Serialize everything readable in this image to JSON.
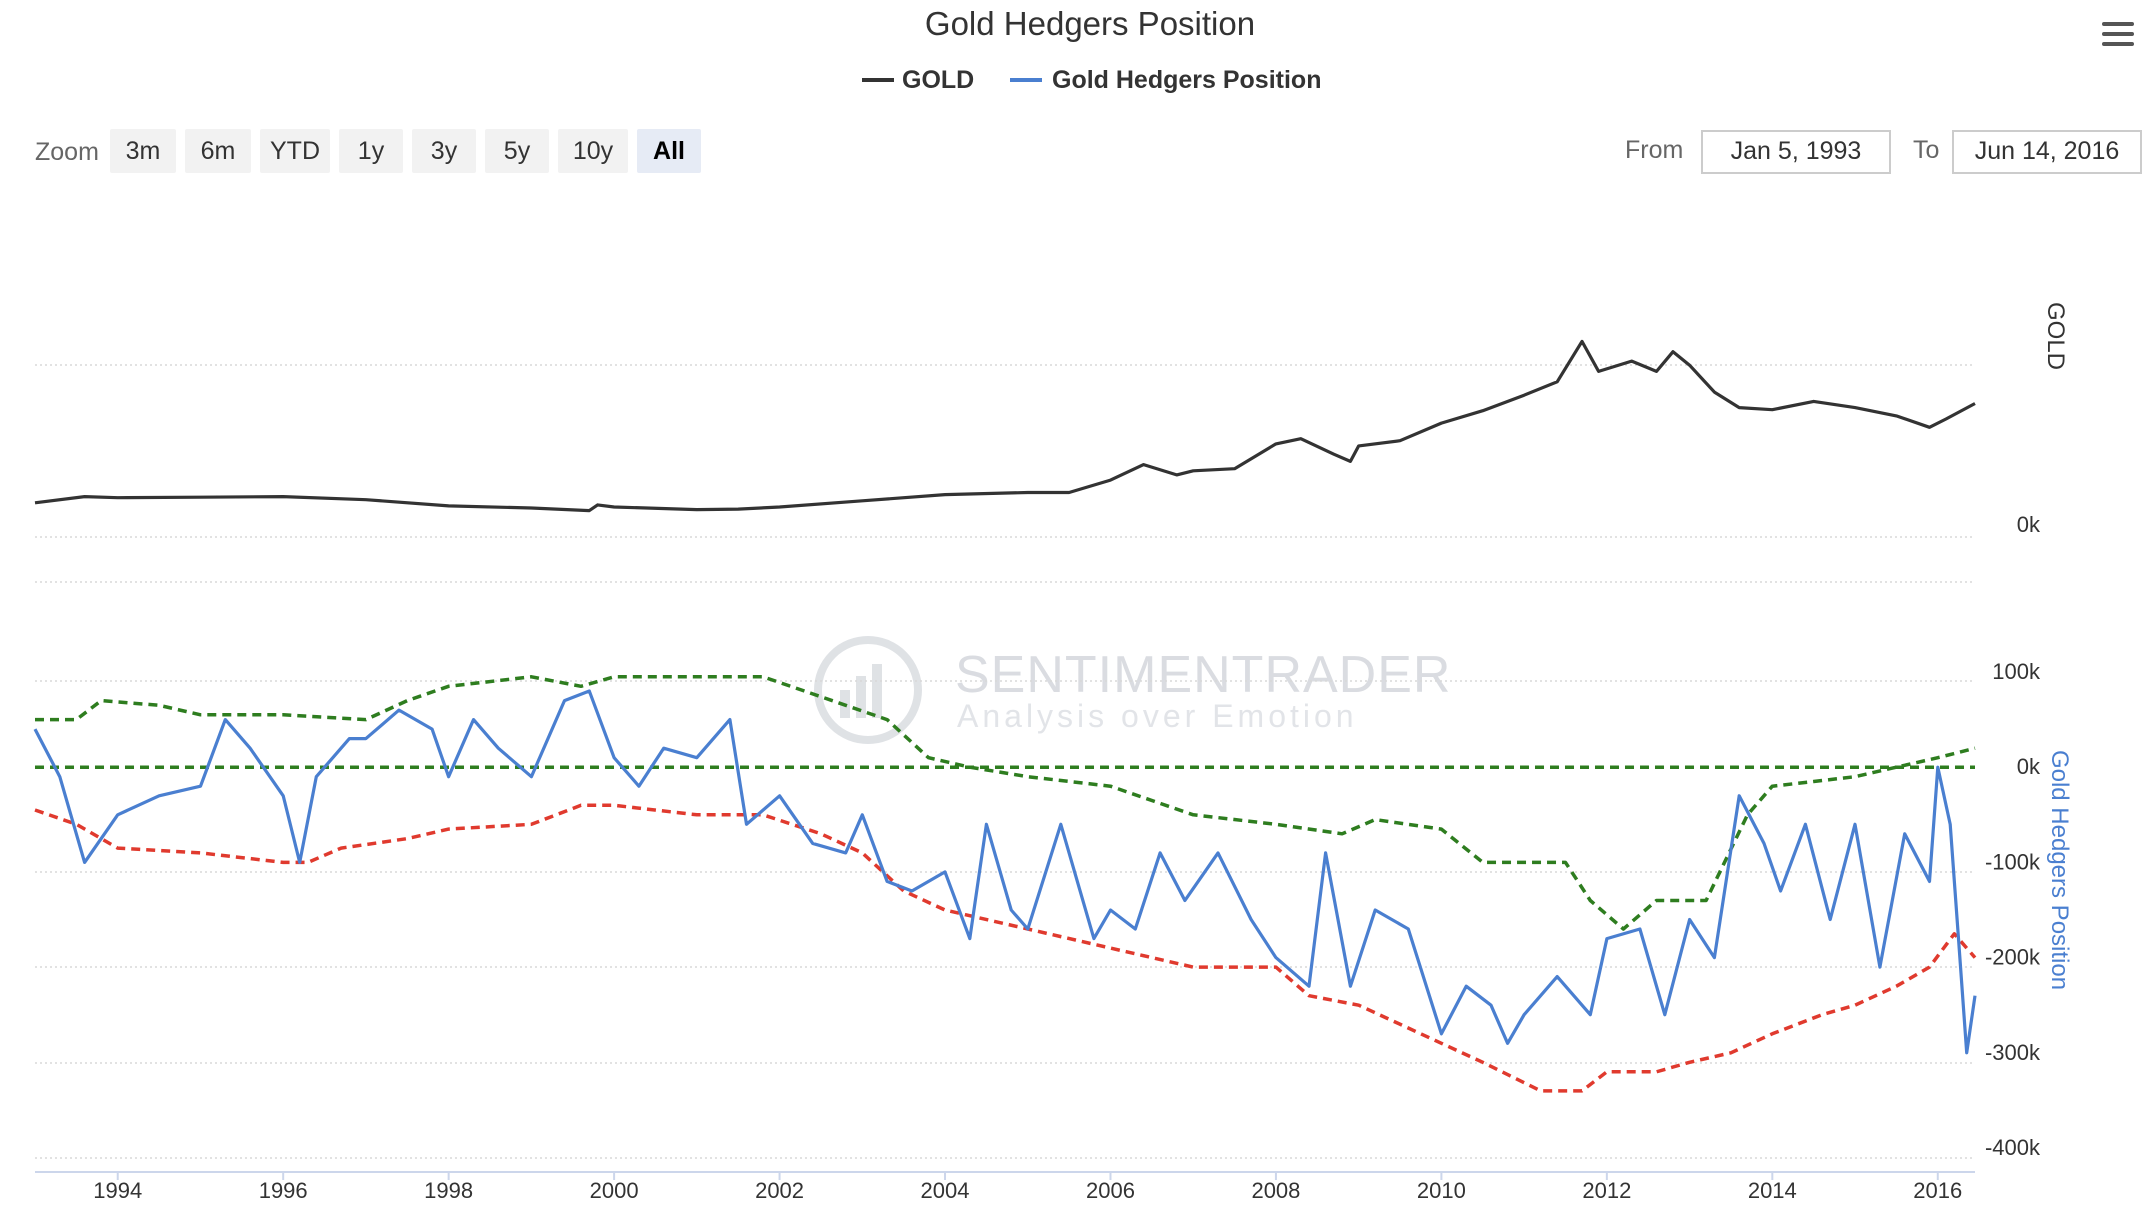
{
  "title": "Gold Hedgers Position",
  "menu_icon": "hamburger-menu-icon",
  "legend": [
    {
      "label": "GOLD",
      "color": "#333333"
    },
    {
      "label": "Gold Hedgers Position",
      "color": "#4a7fd0"
    }
  ],
  "zoom": {
    "label": "Zoom",
    "buttons": [
      "3m",
      "6m",
      "YTD",
      "1y",
      "3y",
      "5y",
      "10y",
      "All"
    ],
    "active": "All"
  },
  "range": {
    "from_label": "From",
    "from_value": "Jan 5, 1993",
    "to_label": "To",
    "to_value": "Jun 14, 2016"
  },
  "watermark": {
    "line1": "SENTIMENTRADER",
    "line2": "Analysis over Emotion"
  },
  "colors": {
    "gold": "#333333",
    "hedgers": "#4a7fd0",
    "upper_band": "#2e7d1f",
    "lower_band": "#e03a2e",
    "zero_line": "#2e7d1f"
  },
  "chart_data": {
    "type": "line",
    "x_range": [
      1993.0,
      2016.45
    ],
    "x_ticks": [
      "1994",
      "1996",
      "1998",
      "2000",
      "2002",
      "2004",
      "2006",
      "2008",
      "2010",
      "2012",
      "2014",
      "2016"
    ],
    "panels": [
      {
        "name": "GOLD",
        "axis_title": "GOLD",
        "y_ticks": [
          "0k"
        ],
        "series": [
          {
            "name": "GOLD",
            "color": "#333333",
            "points": [
              [
                1993.0,
                330
              ],
              [
                1993.6,
                390
              ],
              [
                1994.0,
                380
              ],
              [
                1995.0,
                385
              ],
              [
                1996.0,
                390
              ],
              [
                1997.0,
                360
              ],
              [
                1998.0,
                300
              ],
              [
                1999.0,
                280
              ],
              [
                1999.7,
                255
              ],
              [
                1999.8,
                310
              ],
              [
                2000.0,
                290
              ],
              [
                2001.0,
                265
              ],
              [
                2001.5,
                270
              ],
              [
                2002.0,
                290
              ],
              [
                2003.0,
                350
              ],
              [
                2004.0,
                410
              ],
              [
                2005.0,
                430
              ],
              [
                2005.5,
                430
              ],
              [
                2006.0,
                550
              ],
              [
                2006.4,
                700
              ],
              [
                2006.8,
                600
              ],
              [
                2007.0,
                640
              ],
              [
                2007.5,
                660
              ],
              [
                2008.0,
                900
              ],
              [
                2008.3,
                950
              ],
              [
                2008.7,
                800
              ],
              [
                2008.9,
                730
              ],
              [
                2009.0,
                880
              ],
              [
                2009.5,
                930
              ],
              [
                2010.0,
                1100
              ],
              [
                2010.5,
                1220
              ],
              [
                2011.0,
                1370
              ],
              [
                2011.4,
                1500
              ],
              [
                2011.7,
                1890
              ],
              [
                2011.9,
                1600
              ],
              [
                2012.3,
                1700
              ],
              [
                2012.6,
                1600
              ],
              [
                2012.8,
                1790
              ],
              [
                2013.0,
                1660
              ],
              [
                2013.3,
                1400
              ],
              [
                2013.6,
                1250
              ],
              [
                2014.0,
                1230
              ],
              [
                2014.5,
                1310
              ],
              [
                2015.0,
                1250
              ],
              [
                2015.5,
                1170
              ],
              [
                2015.9,
                1060
              ],
              [
                2016.1,
                1140
              ],
              [
                2016.45,
                1290
              ]
            ]
          }
        ]
      },
      {
        "name": "Gold Hedgers Position",
        "axis_title": "Gold Hedgers Position",
        "y_ticks": [
          "100k",
          "0k",
          "-100k",
          "-200k",
          "-300k",
          "-400k"
        ],
        "y_range": [
          -400000,
          100000
        ],
        "series": [
          {
            "name": "Gold Hedgers Position",
            "color": "#4a7fd0",
            "points": [
              [
                1993.0,
                40000
              ],
              [
                1993.3,
                -10000
              ],
              [
                1993.6,
                -100000
              ],
              [
                1994.0,
                -50000
              ],
              [
                1994.5,
                -30000
              ],
              [
                1995.0,
                -20000
              ],
              [
                1995.3,
                50000
              ],
              [
                1995.6,
                20000
              ],
              [
                1996.0,
                -30000
              ],
              [
                1996.2,
                -100000
              ],
              [
                1996.4,
                -10000
              ],
              [
                1996.8,
                30000
              ],
              [
                1997.0,
                30000
              ],
              [
                1997.4,
                60000
              ],
              [
                1997.8,
                40000
              ],
              [
                1998.0,
                -10000
              ],
              [
                1998.3,
                50000
              ],
              [
                1998.6,
                20000
              ],
              [
                1999.0,
                -10000
              ],
              [
                1999.4,
                70000
              ],
              [
                1999.7,
                80000
              ],
              [
                2000.0,
                10000
              ],
              [
                2000.3,
                -20000
              ],
              [
                2000.6,
                20000
              ],
              [
                2001.0,
                10000
              ],
              [
                2001.4,
                50000
              ],
              [
                2001.6,
                -60000
              ],
              [
                2002.0,
                -30000
              ],
              [
                2002.4,
                -80000
              ],
              [
                2002.8,
                -90000
              ],
              [
                2003.0,
                -50000
              ],
              [
                2003.3,
                -120000
              ],
              [
                2003.6,
                -130000
              ],
              [
                2004.0,
                -110000
              ],
              [
                2004.3,
                -180000
              ],
              [
                2004.5,
                -60000
              ],
              [
                2004.8,
                -150000
              ],
              [
                2005.0,
                -170000
              ],
              [
                2005.4,
                -60000
              ],
              [
                2005.8,
                -180000
              ],
              [
                2006.0,
                -150000
              ],
              [
                2006.3,
                -170000
              ],
              [
                2006.6,
                -90000
              ],
              [
                2006.9,
                -140000
              ],
              [
                2007.3,
                -90000
              ],
              [
                2007.7,
                -160000
              ],
              [
                2008.0,
                -200000
              ],
              [
                2008.4,
                -230000
              ],
              [
                2008.6,
                -90000
              ],
              [
                2008.9,
                -230000
              ],
              [
                2009.2,
                -150000
              ],
              [
                2009.6,
                -170000
              ],
              [
                2010.0,
                -280000
              ],
              [
                2010.3,
                -230000
              ],
              [
                2010.6,
                -250000
              ],
              [
                2010.8,
                -290000
              ],
              [
                2011.0,
                -260000
              ],
              [
                2011.4,
                -220000
              ],
              [
                2011.8,
                -260000
              ],
              [
                2012.0,
                -180000
              ],
              [
                2012.4,
                -170000
              ],
              [
                2012.7,
                -260000
              ],
              [
                2013.0,
                -160000
              ],
              [
                2013.3,
                -200000
              ],
              [
                2013.6,
                -30000
              ],
              [
                2013.9,
                -80000
              ],
              [
                2014.1,
                -130000
              ],
              [
                2014.4,
                -60000
              ],
              [
                2014.7,
                -160000
              ],
              [
                2015.0,
                -60000
              ],
              [
                2015.3,
                -210000
              ],
              [
                2015.6,
                -70000
              ],
              [
                2015.9,
                -120000
              ],
              [
                2016.0,
                0
              ],
              [
                2016.15,
                -60000
              ],
              [
                2016.25,
                -180000
              ],
              [
                2016.35,
                -300000
              ],
              [
                2016.45,
                -240000
              ]
            ]
          },
          {
            "name": "",
            "color": "#2e7d1f",
            "dashed": true,
            "points": [
              [
                1993.0,
                50000
              ],
              [
                1993.5,
                50000
              ],
              [
                1993.8,
                70000
              ],
              [
                1994.5,
                65000
              ],
              [
                1995.0,
                55000
              ],
              [
                1996.0,
                55000
              ],
              [
                1997.0,
                50000
              ],
              [
                1997.5,
                70000
              ],
              [
                1998.0,
                85000
              ],
              [
                1999.0,
                95000
              ],
              [
                1999.6,
                85000
              ],
              [
                2000.0,
                95000
              ],
              [
                2001.0,
                95000
              ],
              [
                2001.8,
                95000
              ],
              [
                2002.3,
                80000
              ],
              [
                2002.8,
                65000
              ],
              [
                2003.3,
                50000
              ],
              [
                2003.8,
                10000
              ],
              [
                2004.3,
                0
              ],
              [
                2005.0,
                -10000
              ],
              [
                2006.0,
                -20000
              ],
              [
                2007.0,
                -50000
              ],
              [
                2008.0,
                -60000
              ],
              [
                2008.8,
                -70000
              ],
              [
                2009.2,
                -55000
              ],
              [
                2010.0,
                -65000
              ],
              [
                2010.5,
                -100000
              ],
              [
                2011.5,
                -100000
              ],
              [
                2011.8,
                -140000
              ],
              [
                2012.2,
                -170000
              ],
              [
                2012.6,
                -140000
              ],
              [
                2013.2,
                -140000
              ],
              [
                2013.7,
                -50000
              ],
              [
                2014.0,
                -20000
              ],
              [
                2014.5,
                -15000
              ],
              [
                2015.0,
                -10000
              ],
              [
                2015.5,
                0
              ],
              [
                2016.0,
                10000
              ],
              [
                2016.45,
                20000
              ]
            ]
          },
          {
            "name": "",
            "color": "#e03a2e",
            "dashed": true,
            "points": [
              [
                1993.0,
                -45000
              ],
              [
                1993.5,
                -60000
              ],
              [
                1994.0,
                -85000
              ],
              [
                1995.0,
                -90000
              ],
              [
                1996.0,
                -100000
              ],
              [
                1996.3,
                -100000
              ],
              [
                1996.7,
                -85000
              ],
              [
                1997.5,
                -75000
              ],
              [
                1998.0,
                -65000
              ],
              [
                1999.0,
                -60000
              ],
              [
                1999.6,
                -40000
              ],
              [
                2000.0,
                -40000
              ],
              [
                2001.0,
                -50000
              ],
              [
                2001.8,
                -50000
              ],
              [
                2002.5,
                -70000
              ],
              [
                2003.0,
                -90000
              ],
              [
                2003.5,
                -130000
              ],
              [
                2004.0,
                -150000
              ],
              [
                2005.0,
                -170000
              ],
              [
                2006.0,
                -190000
              ],
              [
                2007.0,
                -210000
              ],
              [
                2008.0,
                -210000
              ],
              [
                2008.4,
                -240000
              ],
              [
                2009.0,
                -250000
              ],
              [
                2010.0,
                -290000
              ],
              [
                2010.5,
                -310000
              ],
              [
                2011.2,
                -340000
              ],
              [
                2011.7,
                -340000
              ],
              [
                2012.0,
                -320000
              ],
              [
                2012.6,
                -320000
              ],
              [
                2013.0,
                -310000
              ],
              [
                2013.5,
                -300000
              ],
              [
                2014.0,
                -280000
              ],
              [
                2014.6,
                -260000
              ],
              [
                2015.0,
                -250000
              ],
              [
                2015.5,
                -230000
              ],
              [
                2015.9,
                -210000
              ],
              [
                2016.2,
                -175000
              ],
              [
                2016.45,
                -200000
              ]
            ]
          },
          {
            "name": "",
            "color": "#2e7d1f",
            "dashed": true,
            "points": [
              [
                1993.0,
                0
              ],
              [
                2016.45,
                0
              ]
            ]
          }
        ]
      }
    ],
    "grid": true,
    "legend_position": "top-center"
  }
}
